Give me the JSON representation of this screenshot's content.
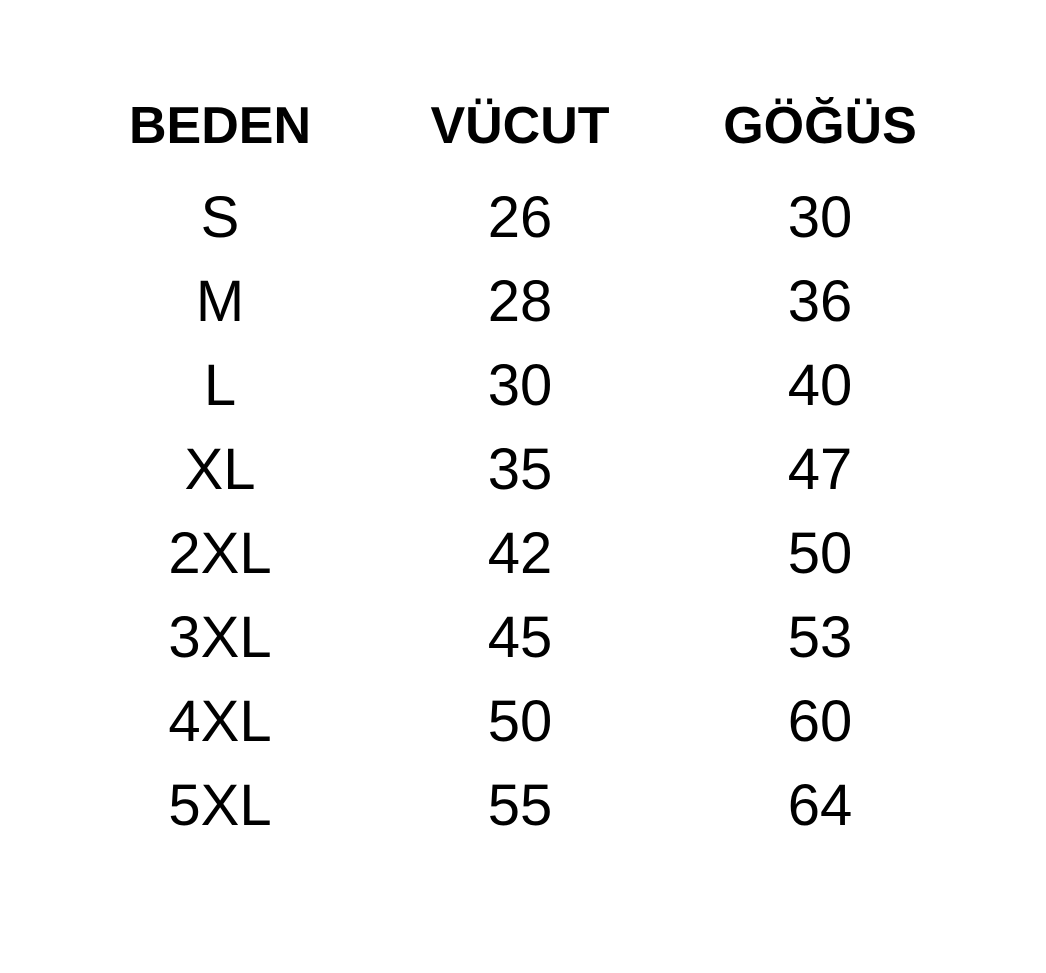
{
  "chart_data": {
    "type": "table",
    "columns": [
      "BEDEN",
      "VÜCUT",
      "GÖĞÜS"
    ],
    "rows": [
      [
        "S",
        "26",
        "30"
      ],
      [
        "M",
        "28",
        "36"
      ],
      [
        "L",
        "30",
        "40"
      ],
      [
        "XL",
        "35",
        "47"
      ],
      [
        "2XL",
        "42",
        "50"
      ],
      [
        "3XL",
        "45",
        "53"
      ],
      [
        "4XL",
        "50",
        "60"
      ],
      [
        "5XL",
        "55",
        "64"
      ]
    ],
    "title": "",
    "legend": "none",
    "grid": "off"
  },
  "colors": {
    "background": "#ffffff",
    "text": "#000000"
  }
}
